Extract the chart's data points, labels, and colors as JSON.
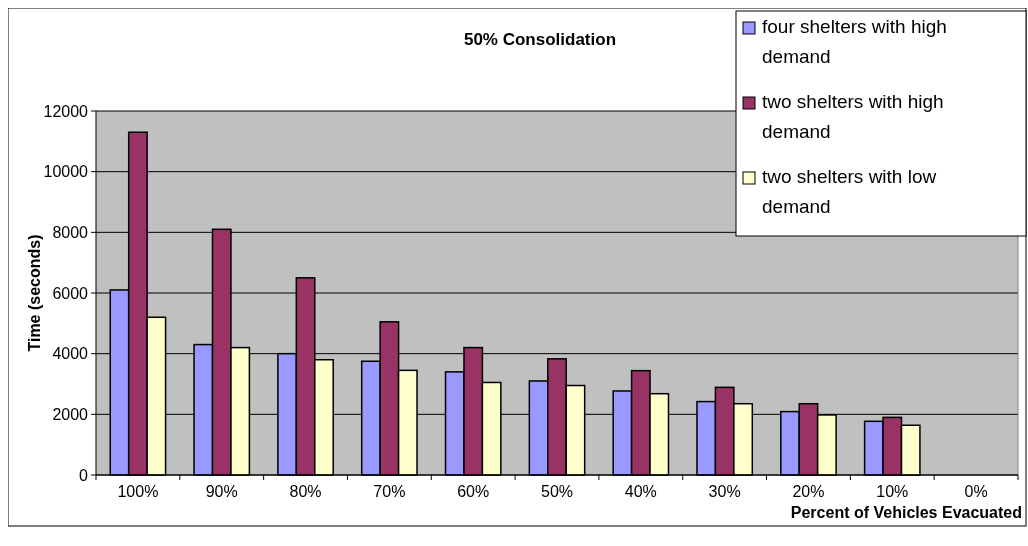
{
  "chart_data": {
    "type": "bar",
    "title": "50% Consolidation",
    "xlabel": "Percent of Vehicles Evacuated",
    "ylabel": "Time (seconds)",
    "categories": [
      "100%",
      "90%",
      "80%",
      "70%",
      "60%",
      "50%",
      "40%",
      "30%",
      "20%",
      "10%",
      "0%"
    ],
    "series": [
      {
        "name": "four shelters with high demand",
        "color": "#9999ff",
        "values": [
          6100,
          4300,
          4000,
          3750,
          3400,
          3100,
          2770,
          2420,
          2090,
          1770,
          null
        ]
      },
      {
        "name": "two shelters with high demand",
        "color": "#993366",
        "values": [
          11300,
          8100,
          6500,
          5050,
          4200,
          3830,
          3440,
          2890,
          2350,
          1900,
          null
        ]
      },
      {
        "name": "two shelters with low demand",
        "color": "#ffffcc",
        "values": [
          5200,
          4200,
          3800,
          3450,
          3050,
          2950,
          2680,
          2350,
          1980,
          1640,
          null
        ]
      }
    ],
    "ylim": [
      0,
      12000
    ],
    "yticks": [
      0,
      2000,
      4000,
      6000,
      8000,
      10000,
      12000
    ],
    "grid": "y",
    "legend": "top right"
  }
}
